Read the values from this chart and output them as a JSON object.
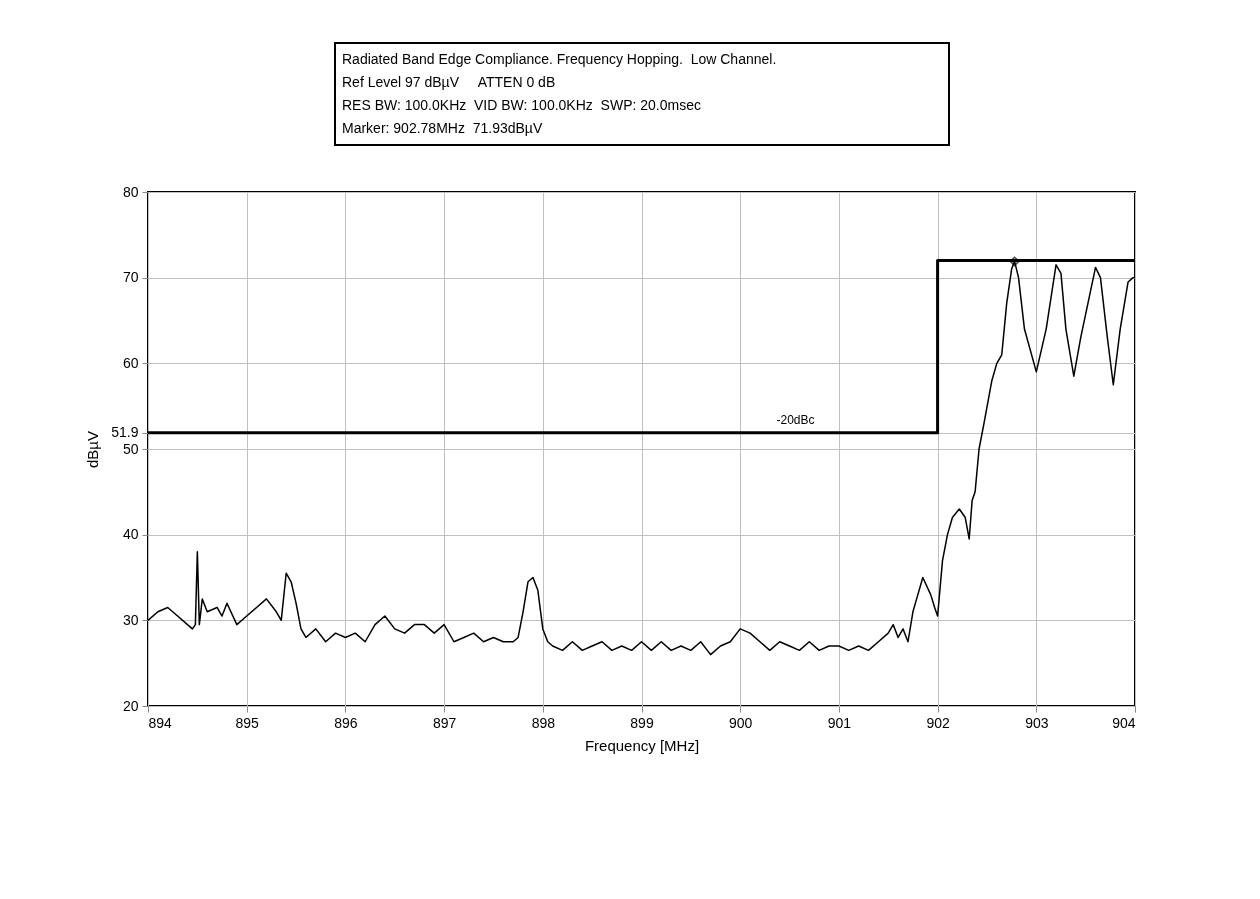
{
  "chart_data": {
    "type": "line",
    "title": "Radiated Band Edge Compliance. Frequency Hopping.  Low Channel.",
    "annotations": [
      "Ref Level 97 dBµV     ATTEN 0 dB",
      "RES BW: 100.0KHz  VID BW: 100.0KHz  SWP: 20.0msec",
      "Marker: 902.78MHz  71.93dBµV"
    ],
    "xlabel": "Frequency [MHz]",
    "ylabel": "dBµV",
    "xlim": [
      894,
      904
    ],
    "xticks": [
      894,
      895,
      896,
      897,
      898,
      899,
      900,
      901,
      902,
      903,
      904
    ],
    "ylim": [
      20,
      80
    ],
    "yticks": [
      20,
      30,
      40,
      50,
      {
        "value": 51.9,
        "label": "51.9"
      },
      60,
      70,
      80
    ],
    "grid": true,
    "series": [
      {
        "color": "#000000",
        "x": [
          894.0,
          894.1,
          894.2,
          894.3,
          894.4,
          894.45,
          894.48,
          894.5,
          894.52,
          894.55,
          894.6,
          894.7,
          894.75,
          894.8,
          894.9,
          895.0,
          895.1,
          895.2,
          895.3,
          895.35,
          895.4,
          895.45,
          895.5,
          895.55,
          895.6,
          895.7,
          895.8,
          895.9,
          896.0,
          896.1,
          896.2,
          896.3,
          896.4,
          896.5,
          896.6,
          896.7,
          896.8,
          896.9,
          897.0,
          897.1,
          897.2,
          897.3,
          897.4,
          897.5,
          897.6,
          897.7,
          897.75,
          897.8,
          897.85,
          897.9,
          897.95,
          898.0,
          898.05,
          898.1,
          898.2,
          898.3,
          898.4,
          898.5,
          898.6,
          898.7,
          898.8,
          898.9,
          899.0,
          899.1,
          899.2,
          899.3,
          899.4,
          899.5,
          899.6,
          899.7,
          899.8,
          899.9,
          900.0,
          900.1,
          900.2,
          900.3,
          900.4,
          900.5,
          900.6,
          900.7,
          900.8,
          900.9,
          901.0,
          901.1,
          901.2,
          901.3,
          901.4,
          901.5,
          901.55,
          901.6,
          901.65,
          901.7,
          901.75,
          901.8,
          901.85,
          901.93,
          901.97,
          902.0,
          902.05,
          902.1,
          902.15,
          902.22,
          902.28,
          902.32,
          902.35,
          902.38,
          902.42,
          902.47,
          902.55,
          902.6,
          902.65,
          902.7,
          902.75,
          902.78,
          902.82,
          902.88,
          903.0,
          903.1,
          903.2,
          903.25,
          903.3,
          903.38,
          903.45,
          903.6,
          903.65,
          903.72,
          903.78,
          903.85,
          903.93,
          903.98,
          904.0
        ],
        "values": [
          30.0,
          31.0,
          31.5,
          30.5,
          29.5,
          29.0,
          29.5,
          38.0,
          29.5,
          32.5,
          31.0,
          31.5,
          30.5,
          32.0,
          29.5,
          30.5,
          31.5,
          32.5,
          31.0,
          30.0,
          35.5,
          34.5,
          32.0,
          29.0,
          28.0,
          29.0,
          27.5,
          28.5,
          28.0,
          28.5,
          27.5,
          29.5,
          30.5,
          29.0,
          28.5,
          29.5,
          29.5,
          28.5,
          29.5,
          27.5,
          28.0,
          28.5,
          27.5,
          28.0,
          27.5,
          27.5,
          28.0,
          31.0,
          34.5,
          35.0,
          33.5,
          29.0,
          27.5,
          27.0,
          26.5,
          27.5,
          26.5,
          27.0,
          27.5,
          26.5,
          27.0,
          26.5,
          27.5,
          26.5,
          27.5,
          26.5,
          27.0,
          26.5,
          27.5,
          26.0,
          27.0,
          27.5,
          29.0,
          28.5,
          27.5,
          26.5,
          27.5,
          27.0,
          26.5,
          27.5,
          26.5,
          27.0,
          27.0,
          26.5,
          27.0,
          26.5,
          27.5,
          28.5,
          29.5,
          28.0,
          29.0,
          27.5,
          31.0,
          33.0,
          35.0,
          33.0,
          31.5,
          30.5,
          37.0,
          40.0,
          42.0,
          43.0,
          42.0,
          39.5,
          44.0,
          45.0,
          50.0,
          53.0,
          58.0,
          60.0,
          61.0,
          67.0,
          71.0,
          71.9,
          70.0,
          64.0,
          59.0,
          64.0,
          71.5,
          70.5,
          64.0,
          58.5,
          63.0,
          71.2,
          70.0,
          63.0,
          57.5,
          64.0,
          69.5,
          70.0,
          70.0
        ]
      },
      {
        "type": "step",
        "name": "-20dBc",
        "color": "#000000",
        "x": [
          894,
          902,
          904
        ],
        "values": [
          51.9,
          72,
          72
        ]
      },
      {
        "type": "scatter",
        "color": "#000000",
        "marker": "diamond",
        "x": [
          902.78
        ],
        "values": [
          71.9
        ]
      }
    ]
  }
}
